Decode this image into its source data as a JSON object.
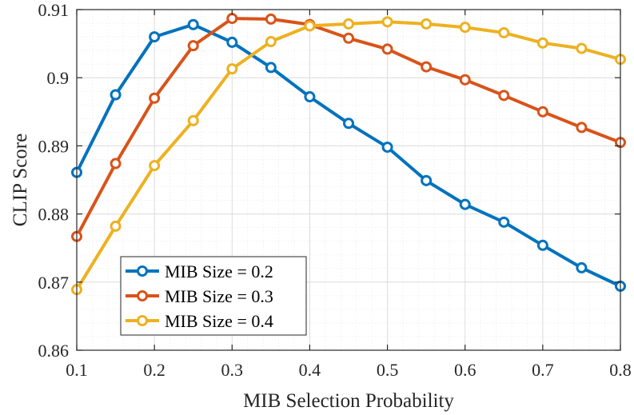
{
  "chart_data": {
    "type": "line",
    "title": "",
    "xlabel": "MIB Selection Probability",
    "ylabel": "CLIP Score",
    "xlim": [
      0.1,
      0.8
    ],
    "ylim": [
      0.86,
      0.91
    ],
    "grid": true,
    "legend_position": "bottom-left",
    "x_ticks": [
      0.1,
      0.2,
      0.3,
      0.4,
      0.5,
      0.6,
      0.7,
      0.8
    ],
    "x_tick_labels": [
      "0.1",
      "0.2",
      "0.3",
      "0.4",
      "0.5",
      "0.6",
      "0.7",
      "0.8"
    ],
    "y_ticks": [
      0.86,
      0.87,
      0.88,
      0.89,
      0.9,
      0.91
    ],
    "y_tick_labels": [
      "0.86",
      "0.87",
      "0.88",
      "0.89",
      "0.9",
      "0.91"
    ],
    "x": [
      0.1,
      0.15,
      0.2,
      0.25,
      0.3,
      0.35,
      0.4,
      0.45,
      0.5,
      0.55,
      0.6,
      0.65,
      0.7,
      0.75,
      0.8
    ],
    "series": [
      {
        "name": "MIB Size = 0.2",
        "color": "#0072BD",
        "values": [
          0.8861,
          0.8975,
          0.906,
          0.9078,
          0.9052,
          0.9015,
          0.8972,
          0.8933,
          0.8898,
          0.8849,
          0.8814,
          0.8788,
          0.8754,
          0.8721,
          0.8694
        ]
      },
      {
        "name": "MIB Size = 0.3",
        "color": "#D95319",
        "values": [
          0.8767,
          0.8874,
          0.897,
          0.9047,
          0.9087,
          0.9086,
          0.9078,
          0.9058,
          0.9042,
          0.9016,
          0.8997,
          0.8974,
          0.895,
          0.8927,
          0.8905
        ]
      },
      {
        "name": "MIB Size = 0.4",
        "color": "#EDB120",
        "values": [
          0.8689,
          0.8782,
          0.8871,
          0.8937,
          0.9013,
          0.9053,
          0.9076,
          0.9079,
          0.9082,
          0.9079,
          0.9074,
          0.9066,
          0.9051,
          0.9043,
          0.9027
        ]
      }
    ]
  }
}
